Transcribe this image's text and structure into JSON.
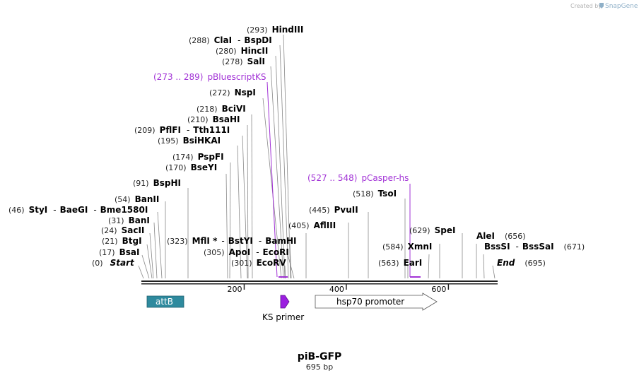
{
  "credit": {
    "prefix": "Created by",
    "brand": "SnapGene"
  },
  "sequence": {
    "name": "piB-GFP",
    "length_label": "695 bp",
    "length": 695
  },
  "axis": {
    "ticks": [
      200,
      400,
      600
    ]
  },
  "sites": [
    {
      "pos": "(0)",
      "name": "Start",
      "site": 0
    },
    {
      "pos": "(17)",
      "name": "BsaI",
      "site": 17
    },
    {
      "pos": "(21)",
      "name": "BtgI",
      "site": 21
    },
    {
      "pos": "(24)",
      "name": "SacII",
      "site": 24
    },
    {
      "pos": "(31)",
      "name": "BanI",
      "site": 31
    },
    {
      "pos": "(46)",
      "name": "StyI",
      "site": 46
    },
    {
      "pos": "(46)",
      "name": "BaeGI",
      "site": 46
    },
    {
      "pos": "(46)",
      "name": "Bme1580I",
      "site": 46
    },
    {
      "pos": "(54)",
      "name": "BanII",
      "site": 54
    },
    {
      "pos": "(91)",
      "name": "BspHI",
      "site": 91
    },
    {
      "pos": "(170)",
      "name": "BseYI",
      "site": 170
    },
    {
      "pos": "(174)",
      "name": "PspFI",
      "site": 174
    },
    {
      "pos": "(195)",
      "name": "BsiHKAI",
      "site": 195
    },
    {
      "pos": "(209)",
      "name": "PflFI",
      "site": 209
    },
    {
      "pos": "(209)",
      "name": "Tth111I",
      "site": 209
    },
    {
      "pos": "(210)",
      "name": "BsaHI",
      "site": 210
    },
    {
      "pos": "(218)",
      "name": "BciVI",
      "site": 218
    },
    {
      "pos": "(272)",
      "name": "NspI",
      "site": 272
    },
    {
      "pos": "(278)",
      "name": "SalI",
      "site": 278
    },
    {
      "pos": "(280)",
      "name": "HincII",
      "site": 280
    },
    {
      "pos": "(288)",
      "name": "ClaI",
      "site": 288
    },
    {
      "pos": "(288)",
      "name": "BspDI",
      "site": 288
    },
    {
      "pos": "(293)",
      "name": "HindIII",
      "site": 293
    },
    {
      "pos": "(323)",
      "name": "MflI *",
      "site": 323
    },
    {
      "pos": "(323)",
      "name": "BstYI",
      "site": 323
    },
    {
      "pos": "(323)",
      "name": "BamHI",
      "site": 323
    },
    {
      "pos": "(305)",
      "name": "ApoI",
      "site": 305
    },
    {
      "pos": "(305)",
      "name": "EcoRI",
      "site": 305
    },
    {
      "pos": "(301)",
      "name": "EcoRV",
      "site": 301
    },
    {
      "pos": "(405)",
      "name": "AflIII",
      "site": 405
    },
    {
      "pos": "(445)",
      "name": "PvuII",
      "site": 445
    },
    {
      "pos": "(518)",
      "name": "TsoI",
      "site": 518
    },
    {
      "pos": "(563)",
      "name": "EarI",
      "site": 563
    },
    {
      "pos": "(584)",
      "name": "XmnI",
      "site": 584
    },
    {
      "pos": "(629)",
      "name": "SpeI",
      "site": 629
    },
    {
      "pos": "(656)",
      "name": "AleI",
      "site": 656
    },
    {
      "pos": "(671)",
      "name": "BssSI",
      "site": 671
    },
    {
      "pos": "(671)",
      "name": "BssSaI",
      "site": 671
    },
    {
      "pos": "(695)",
      "name": "End",
      "site": 695
    }
  ],
  "primers": [
    {
      "range": "(273 .. 289)",
      "name": "pBluescriptKS",
      "start": 273,
      "end": 289
    },
    {
      "range": "(527 .. 548)",
      "name": "pCasper-hs",
      "start": 527,
      "end": 548
    }
  ],
  "features": [
    {
      "name": "attB",
      "type": "box",
      "color": "#2e8a9e",
      "start": 10,
      "end": 83
    },
    {
      "name": "KS primer",
      "type": "arrow",
      "color": "#9b1fe0",
      "start": 273,
      "end": 289
    },
    {
      "name": "hsp70 promoter",
      "type": "arrow",
      "color": "#ffffff",
      "start": 340,
      "end": 580
    }
  ],
  "colors": {
    "primer": "#a233d6",
    "attB": "#2e8a9e",
    "ks": "#9b1fe0",
    "bar": "#222222"
  }
}
